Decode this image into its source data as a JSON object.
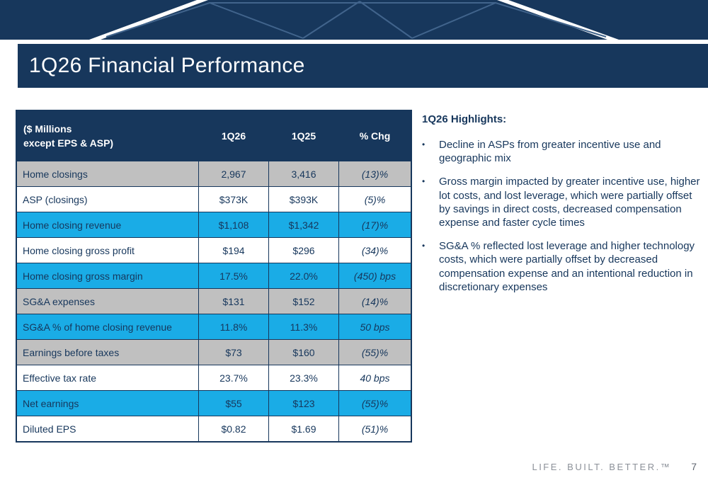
{
  "slide": {
    "title": "1Q26 Financial Performance",
    "tagline": "LIFE. BUILT. BETTER.™",
    "page_number": "7"
  },
  "table": {
    "header": {
      "label": "($ Millions\nexcept EPS & ASP)",
      "q26": "1Q26",
      "q25": "1Q25",
      "chg": "% Chg"
    },
    "rows": [
      {
        "label": "Home closings",
        "q26": "2,967",
        "q25": "3,416",
        "chg": "(13)%",
        "style": "gray"
      },
      {
        "label": "ASP (closings)",
        "q26": "$373K",
        "q25": "$393K",
        "chg": "(5)%",
        "style": "white"
      },
      {
        "label": "Home closing revenue",
        "q26": "$1,108",
        "q25": "$1,342",
        "chg": "(17)%",
        "style": "blue"
      },
      {
        "label": "Home closing gross profit",
        "q26": "$194",
        "q25": "$296",
        "chg": "(34)%",
        "style": "white"
      },
      {
        "label": "Home closing gross margin",
        "q26": "17.5%",
        "q25": "22.0%",
        "chg": "(450) bps",
        "style": "blue"
      },
      {
        "label": "SG&A expenses",
        "q26": "$131",
        "q25": "$152",
        "chg": "(14)%",
        "style": "gray"
      },
      {
        "label": "SG&A % of home closing revenue",
        "q26": "11.8%",
        "q25": "11.3%",
        "chg": "50 bps",
        "style": "blue"
      },
      {
        "label": "Earnings before taxes",
        "q26": "$73",
        "q25": "$160",
        "chg": "(55)%",
        "style": "gray"
      },
      {
        "label": "Effective tax rate",
        "q26": "23.7%",
        "q25": "23.3%",
        "chg": "40 bps",
        "style": "white"
      },
      {
        "label": "Net earnings",
        "q26": "$55",
        "q25": "$123",
        "chg": "(55)%",
        "style": "blue"
      },
      {
        "label": "Diluted EPS",
        "q26": "$0.82",
        "q25": "$1.69",
        "chg": "(51)%",
        "style": "white"
      }
    ]
  },
  "highlights": {
    "title": "1Q26 Highlights:",
    "bullets": [
      "Decline in ASPs from greater incentive use and geographic mix",
      "Gross margin impacted by greater incentive use, higher lot costs, and lost leverage, which were partially offset by savings in direct costs, decreased compensation expense and faster cycle times",
      "SG&A % reflected lost leverage and higher technology costs, which were partially offset by decreased compensation expense and an intentional reduction in discretionary expenses"
    ]
  },
  "colors": {
    "navy": "#17375c",
    "row_blue": "#1aace6",
    "row_gray": "#c0c0c0",
    "banner_line_blue": "#41648c",
    "tagline_gray": "#8c9199"
  }
}
